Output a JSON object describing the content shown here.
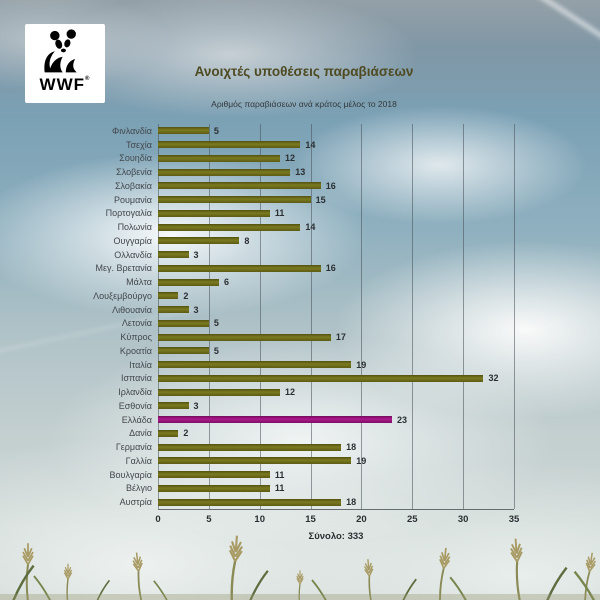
{
  "logo": {
    "brand": "WWF",
    "registered": "®",
    "icon": "panda-icon"
  },
  "header": {
    "title": "Ανοιχτές υποθέσεις παραβιάσεων",
    "subtitle": "Αριθμός παραβιάσεων ανά κράτος μέλος το 2018"
  },
  "chart_data": {
    "type": "bar",
    "orientation": "horizontal",
    "title": "Ανοιχτές υποθέσεις παραβιάσεων",
    "subtitle": "Αριθμός παραβιάσεων ανά κράτος μέλος το 2018",
    "categories": [
      "Φινλανδία",
      "Τσεχία",
      "Σουηδία",
      "Σλοβενία",
      "Σλοβακία",
      "Ρουμανία",
      "Πορτογαλία",
      "Πολωνία",
      "Ουγγαρία",
      "Ολλανδία",
      "Μεγ. Βρετανία",
      "Μάλτα",
      "Λουξεμβούργο",
      "Λιθουανία",
      "Λετονία",
      "Κύπρος",
      "Κροατία",
      "Ιταλία",
      "Ισπανία",
      "Ιρλανδία",
      "Εσθονία",
      "Ελλάδα",
      "Δανία",
      "Γερμανία",
      "Γαλλία",
      "Βουλγαρία",
      "Βέλγιο",
      "Αυστρία"
    ],
    "values": [
      5,
      14,
      12,
      13,
      16,
      15,
      11,
      14,
      8,
      3,
      16,
      6,
      2,
      3,
      5,
      17,
      5,
      19,
      32,
      12,
      3,
      23,
      2,
      18,
      19,
      11,
      11,
      18
    ],
    "highlight_category": "Ελλάδα",
    "highlight_value": 23,
    "x_ticks": [
      0,
      5,
      10,
      15,
      20,
      25,
      30,
      35
    ],
    "xlim": [
      0,
      35
    ],
    "grid": true,
    "legend": false,
    "colors": {
      "bar": "#6c6b16",
      "highlight": "#a2138b",
      "gridline": "#49505a"
    },
    "total": 333,
    "total_label": "Σύνολο: 333"
  }
}
